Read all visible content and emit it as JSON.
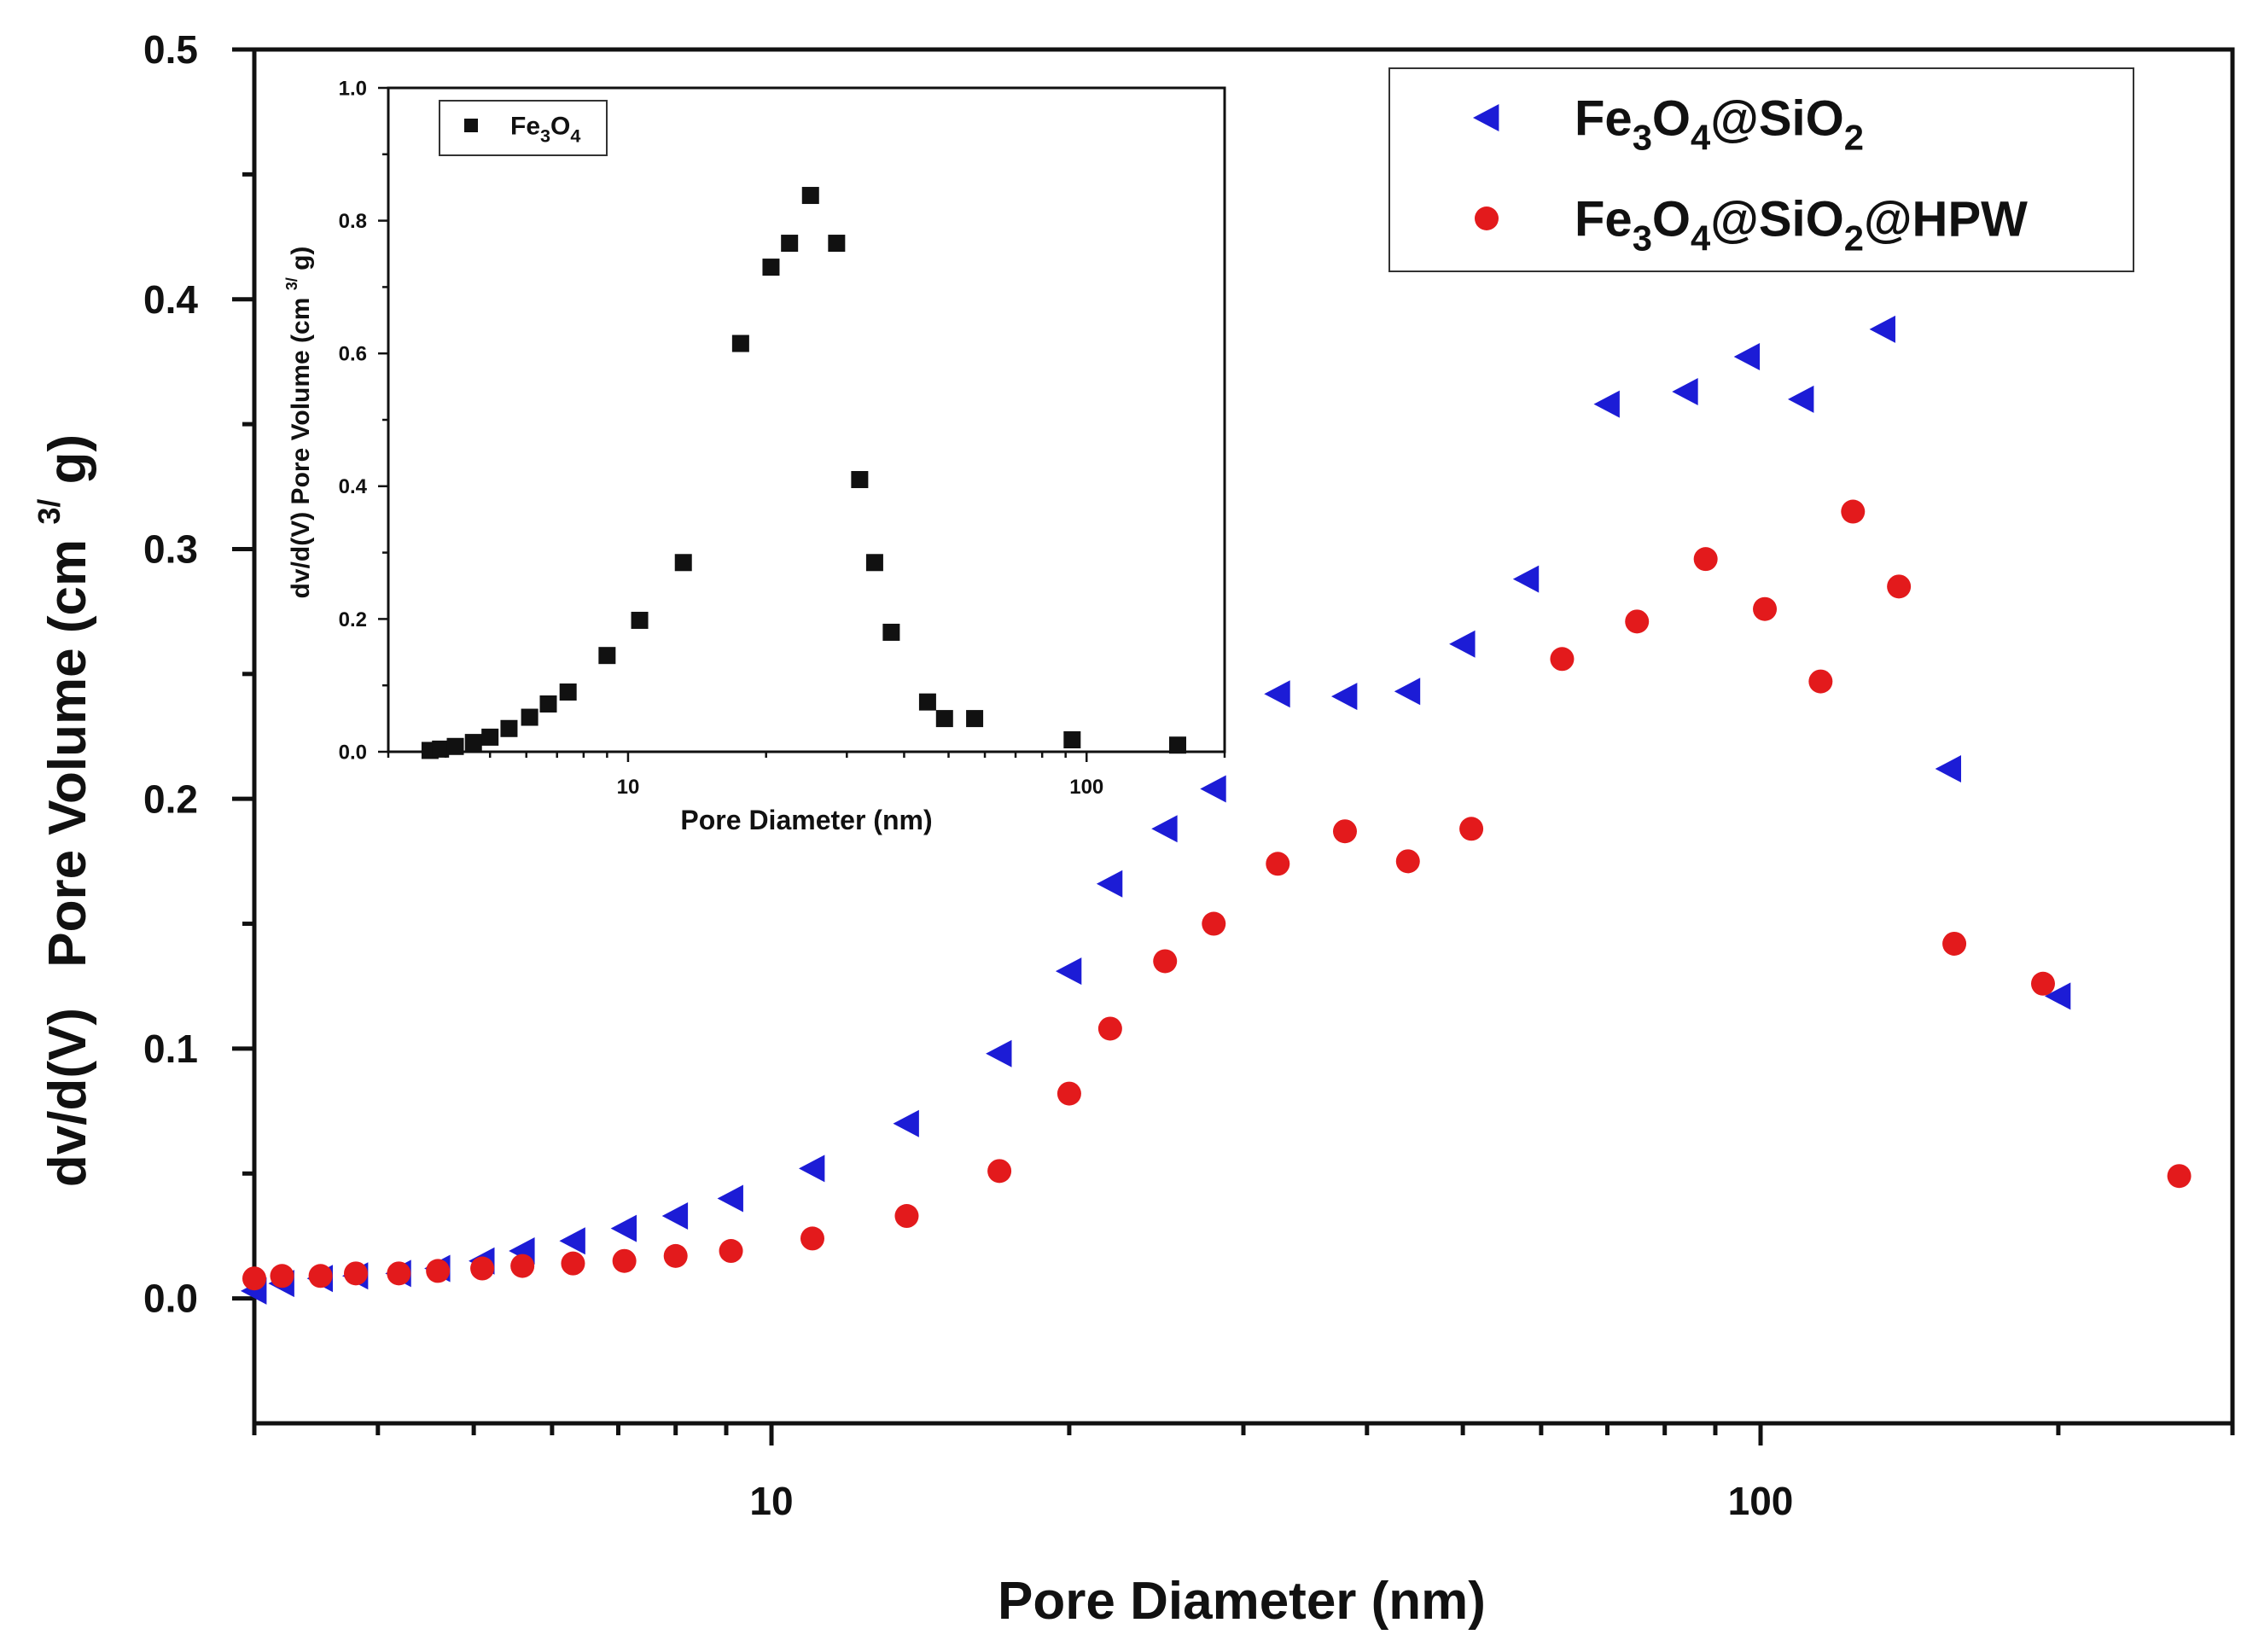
{
  "chart_data": [
    {
      "id": "main",
      "type": "scatter",
      "xscale": "log",
      "xlabel": "Pore Diameter (nm)",
      "ylabel_parts": [
        "dv/d(V)",
        "Pore Volume (cm",
        "3/",
        "g)"
      ],
      "xlim": [
        3,
        300
      ],
      "ylim": [
        -0.05,
        0.5
      ],
      "xticks": [
        {
          "value": 10,
          "label": "10"
        },
        {
          "value": 100,
          "label": "100"
        }
      ],
      "yticks": [
        {
          "value": 0.0,
          "label": "0.0"
        },
        {
          "value": 0.1,
          "label": "0.1"
        },
        {
          "value": 0.2,
          "label": "0.2"
        },
        {
          "value": 0.3,
          "label": "0.3"
        },
        {
          "value": 0.4,
          "label": "0.4"
        },
        {
          "value": 0.5,
          "label": "0.5"
        }
      ],
      "legend_position": "top-right",
      "series": [
        {
          "name": "Fe3O4@SiO2",
          "legend_parts": [
            [
              "Fe",
              "n"
            ],
            [
              "3",
              "sub"
            ],
            [
              "O",
              "n"
            ],
            [
              "4",
              "sub"
            ],
            [
              "@SiO",
              "n"
            ],
            [
              "2",
              "sub"
            ]
          ],
          "marker": "triangle-left",
          "color": "#1c1cd6",
          "points": [
            [
              3.0,
              0.003
            ],
            [
              3.2,
              0.006
            ],
            [
              3.5,
              0.008
            ],
            [
              3.8,
              0.009
            ],
            [
              4.2,
              0.01
            ],
            [
              4.6,
              0.012
            ],
            [
              5.1,
              0.015
            ],
            [
              5.6,
              0.019
            ],
            [
              6.3,
              0.023
            ],
            [
              7.1,
              0.028
            ],
            [
              8.0,
              0.033
            ],
            [
              9.1,
              0.04
            ],
            [
              11.0,
              0.052
            ],
            [
              13.7,
              0.07
            ],
            [
              17.0,
              0.098
            ],
            [
              20.0,
              0.131
            ],
            [
              22.0,
              0.166
            ],
            [
              25.0,
              0.188
            ],
            [
              28.0,
              0.204
            ],
            [
              32.5,
              0.242
            ],
            [
              38.0,
              0.241
            ],
            [
              44.0,
              0.243
            ],
            [
              50.0,
              0.262
            ],
            [
              58.0,
              0.288
            ],
            [
              70.0,
              0.358
            ],
            [
              84.0,
              0.363
            ],
            [
              97.0,
              0.377
            ],
            [
              110.0,
              0.36
            ],
            [
              133.0,
              0.388
            ],
            [
              155.0,
              0.212
            ],
            [
              200.0,
              0.121
            ]
          ]
        },
        {
          "name": "Fe3O4@SiO2@HPW",
          "legend_parts": [
            [
              "Fe",
              "n"
            ],
            [
              "3",
              "sub"
            ],
            [
              "O",
              "n"
            ],
            [
              "4",
              "sub"
            ],
            [
              "@SiO",
              "n"
            ],
            [
              "2",
              "sub"
            ],
            [
              "@HPW",
              "n"
            ]
          ],
          "marker": "circle",
          "color": "#e31a1c",
          "points": [
            [
              3.0,
              0.008
            ],
            [
              3.2,
              0.009
            ],
            [
              3.5,
              0.009
            ],
            [
              3.8,
              0.01
            ],
            [
              4.2,
              0.01
            ],
            [
              4.6,
              0.011
            ],
            [
              5.1,
              0.012
            ],
            [
              5.6,
              0.013
            ],
            [
              6.3,
              0.014
            ],
            [
              7.1,
              0.015
            ],
            [
              8.0,
              0.017
            ],
            [
              9.1,
              0.019
            ],
            [
              11.0,
              0.024
            ],
            [
              13.7,
              0.033
            ],
            [
              17.0,
              0.051
            ],
            [
              20.0,
              0.082
            ],
            [
              22.0,
              0.108
            ],
            [
              25.0,
              0.135
            ],
            [
              28.0,
              0.15
            ],
            [
              32.5,
              0.174
            ],
            [
              38.0,
              0.187
            ],
            [
              44.0,
              0.175
            ],
            [
              51.0,
              0.188
            ],
            [
              63.0,
              0.256
            ],
            [
              75.0,
              0.271
            ],
            [
              88.0,
              0.296
            ],
            [
              101.0,
              0.276
            ],
            [
              115.0,
              0.247
            ],
            [
              124.0,
              0.315
            ],
            [
              138.0,
              0.285
            ],
            [
              157.0,
              0.142
            ],
            [
              193.0,
              0.126
            ],
            [
              265.0,
              0.049
            ]
          ]
        }
      ]
    },
    {
      "id": "inset",
      "type": "scatter",
      "xscale": "log",
      "xlabel": "Pore Diameter (nm)",
      "ylabel_parts": [
        "dv/d(V)  Pore Volume (cm",
        "3/",
        "g)"
      ],
      "xlim": [
        3,
        200
      ],
      "ylim": [
        0,
        1.0
      ],
      "xticks": [
        {
          "value": 10,
          "label": "10"
        },
        {
          "value": 100,
          "label": "100"
        }
      ],
      "yticks": [
        {
          "value": 0.0,
          "label": "0.0"
        },
        {
          "value": 0.2,
          "label": "0.2"
        },
        {
          "value": 0.4,
          "label": "0.4"
        },
        {
          "value": 0.6,
          "label": "0.6"
        },
        {
          "value": 0.8,
          "label": "0.8"
        },
        {
          "value": 1.0,
          "label": "1.0"
        }
      ],
      "legend_position": "top-left",
      "series": [
        {
          "name": "Fe3O4",
          "legend_parts": [
            [
              "Fe",
              "n"
            ],
            [
              "3",
              "sub"
            ],
            [
              "O",
              "n"
            ],
            [
              "4",
              "sub"
            ]
          ],
          "marker": "square",
          "color": "#111111",
          "points": [
            [
              3.7,
              0.002
            ],
            [
              3.9,
              0.004
            ],
            [
              4.2,
              0.008
            ],
            [
              4.6,
              0.014
            ],
            [
              5.0,
              0.022
            ],
            [
              5.5,
              0.035
            ],
            [
              6.1,
              0.052
            ],
            [
              6.7,
              0.072
            ],
            [
              7.4,
              0.09
            ],
            [
              9.0,
              0.145
            ],
            [
              10.6,
              0.198
            ],
            [
              13.2,
              0.285
            ],
            [
              17.6,
              0.615
            ],
            [
              20.5,
              0.73
            ],
            [
              22.5,
              0.766
            ],
            [
              25.0,
              0.838
            ],
            [
              28.5,
              0.766
            ],
            [
              32.0,
              0.41
            ],
            [
              34.5,
              0.285
            ],
            [
              37.5,
              0.18
            ],
            [
              45.0,
              0.075
            ],
            [
              49.0,
              0.05
            ],
            [
              57.0,
              0.05
            ],
            [
              93.0,
              0.018
            ],
            [
              158.0,
              0.01
            ]
          ]
        }
      ]
    }
  ]
}
